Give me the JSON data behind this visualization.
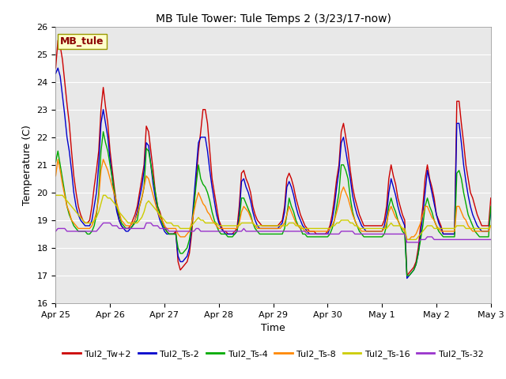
{
  "title": "MB Tule Tower: Tule Temps 2 (3/23/17-now)",
  "xlabel": "Time",
  "ylabel": "Temperature (C)",
  "ylim": [
    16.0,
    26.0
  ],
  "yticks": [
    16.0,
    17.0,
    18.0,
    19.0,
    20.0,
    21.0,
    22.0,
    23.0,
    24.0,
    25.0,
    26.0
  ],
  "bg_color": "#e8e8e8",
  "fig_color": "#ffffff",
  "grid_color": "#ffffff",
  "legend_label": "MB_tule",
  "series_colors": {
    "Tul2_Tw+2": "#cc0000",
    "Tul2_Ts-2": "#0000cc",
    "Tul2_Ts-4": "#00aa00",
    "Tul2_Ts-8": "#ff8800",
    "Tul2_Ts-16": "#cccc00",
    "Tul2_Ts-32": "#9933cc"
  },
  "n_points": 193,
  "Tul2_Tw+2": [
    24.5,
    25.5,
    25.3,
    24.8,
    24.0,
    23.2,
    22.5,
    21.5,
    20.6,
    20.0,
    19.5,
    19.2,
    19.0,
    18.9,
    18.9,
    19.0,
    19.5,
    20.2,
    20.8,
    21.5,
    23.0,
    23.8,
    23.1,
    22.5,
    21.5,
    20.8,
    20.1,
    19.5,
    19.0,
    18.8,
    18.7,
    18.7,
    18.7,
    18.8,
    19.0,
    19.2,
    19.5,
    20.0,
    20.5,
    21.0,
    22.4,
    22.2,
    21.5,
    20.8,
    20.0,
    19.5,
    19.3,
    19.0,
    18.8,
    18.6,
    18.5,
    18.5,
    18.5,
    18.6,
    17.5,
    17.2,
    17.3,
    17.4,
    17.5,
    17.8,
    18.5,
    19.5,
    20.5,
    21.5,
    22.2,
    23.0,
    23.0,
    22.5,
    21.5,
    20.5,
    20.0,
    19.5,
    19.0,
    18.8,
    18.6,
    18.6,
    18.5,
    18.5,
    18.5,
    18.6,
    18.7,
    19.5,
    20.7,
    20.8,
    20.5,
    20.3,
    20.0,
    19.5,
    19.2,
    19.0,
    18.9,
    18.8,
    18.8,
    18.8,
    18.8,
    18.8,
    18.8,
    18.8,
    18.8,
    18.9,
    19.0,
    19.5,
    20.5,
    20.7,
    20.5,
    20.2,
    19.8,
    19.5,
    19.2,
    19.0,
    18.8,
    18.7,
    18.6,
    18.6,
    18.6,
    18.5,
    18.5,
    18.5,
    18.5,
    18.5,
    18.6,
    18.8,
    19.2,
    19.8,
    20.5,
    21.0,
    22.2,
    22.5,
    22.0,
    21.5,
    20.8,
    20.2,
    19.8,
    19.5,
    19.2,
    19.0,
    18.8,
    18.8,
    18.8,
    18.8,
    18.8,
    18.8,
    18.8,
    18.8,
    18.8,
    19.0,
    19.5,
    20.5,
    21.0,
    20.6,
    20.3,
    19.8,
    19.5,
    19.2,
    19.0,
    17.0,
    17.1,
    17.2,
    17.3,
    17.5,
    18.0,
    18.8,
    19.5,
    20.5,
    21.0,
    20.5,
    20.2,
    19.8,
    19.2,
    19.0,
    18.8,
    18.5,
    18.5,
    18.5,
    18.5,
    18.5,
    18.5,
    23.3,
    23.3,
    22.5,
    21.8,
    21.0,
    20.5,
    20.0,
    19.8,
    19.5,
    19.2,
    19.0,
    18.8,
    18.8,
    18.8,
    18.8,
    19.8
  ],
  "Tul2_Ts-2": [
    24.3,
    24.5,
    24.2,
    23.5,
    22.8,
    22.0,
    21.5,
    20.8,
    20.0,
    19.5,
    19.2,
    19.0,
    18.9,
    18.8,
    18.8,
    18.8,
    19.0,
    19.5,
    20.0,
    21.0,
    22.5,
    23.0,
    22.5,
    22.0,
    21.2,
    20.5,
    19.8,
    19.3,
    19.0,
    18.8,
    18.7,
    18.6,
    18.6,
    18.7,
    18.8,
    19.0,
    19.3,
    19.8,
    20.2,
    20.8,
    21.8,
    21.7,
    21.0,
    20.3,
    19.8,
    19.3,
    19.0,
    18.8,
    18.6,
    18.5,
    18.5,
    18.5,
    18.5,
    18.5,
    17.7,
    17.5,
    17.5,
    17.6,
    17.7,
    18.0,
    18.8,
    19.8,
    20.8,
    21.8,
    22.0,
    22.0,
    22.0,
    21.5,
    20.8,
    20.2,
    19.7,
    19.2,
    18.9,
    18.7,
    18.6,
    18.5,
    18.5,
    18.5,
    18.5,
    18.5,
    18.6,
    19.2,
    20.4,
    20.5,
    20.2,
    20.0,
    19.7,
    19.3,
    19.0,
    18.8,
    18.7,
    18.7,
    18.7,
    18.7,
    18.7,
    18.7,
    18.7,
    18.7,
    18.7,
    18.8,
    18.9,
    19.3,
    20.2,
    20.4,
    20.2,
    19.9,
    19.5,
    19.2,
    19.0,
    18.8,
    18.7,
    18.6,
    18.5,
    18.5,
    18.5,
    18.5,
    18.5,
    18.5,
    18.5,
    18.5,
    18.5,
    18.7,
    19.0,
    19.5,
    20.2,
    20.8,
    21.8,
    22.0,
    21.5,
    21.0,
    20.5,
    19.9,
    19.5,
    19.2,
    19.0,
    18.8,
    18.7,
    18.6,
    18.6,
    18.6,
    18.6,
    18.6,
    18.6,
    18.6,
    18.6,
    18.8,
    19.2,
    20.0,
    20.5,
    20.2,
    19.9,
    19.5,
    19.2,
    19.0,
    18.8,
    16.9,
    17.0,
    17.1,
    17.2,
    17.4,
    17.8,
    18.5,
    19.2,
    20.0,
    20.8,
    20.4,
    20.0,
    19.6,
    19.2,
    18.9,
    18.7,
    18.5,
    18.5,
    18.5,
    18.5,
    18.5,
    18.5,
    22.5,
    22.5,
    21.8,
    21.0,
    20.4,
    19.9,
    19.5,
    19.2,
    19.0,
    18.8,
    18.7,
    18.6,
    18.6,
    18.6,
    18.6,
    19.3
  ],
  "Tul2_Ts-4": [
    21.1,
    21.5,
    21.0,
    20.5,
    20.0,
    19.5,
    19.2,
    19.0,
    18.8,
    18.7,
    18.6,
    18.6,
    18.6,
    18.6,
    18.5,
    18.5,
    18.6,
    18.8,
    19.2,
    20.0,
    21.5,
    22.2,
    21.8,
    21.5,
    21.0,
    20.5,
    20.0,
    19.5,
    19.2,
    18.9,
    18.8,
    18.7,
    18.7,
    18.7,
    18.8,
    18.9,
    19.0,
    19.5,
    19.8,
    20.2,
    21.6,
    21.5,
    21.0,
    20.5,
    20.0,
    19.5,
    19.2,
    18.9,
    18.7,
    18.6,
    18.5,
    18.5,
    18.5,
    18.5,
    18.0,
    17.8,
    17.8,
    17.9,
    18.0,
    18.3,
    18.8,
    19.5,
    20.3,
    21.0,
    20.5,
    20.3,
    20.2,
    20.0,
    19.7,
    19.3,
    19.0,
    18.8,
    18.6,
    18.5,
    18.5,
    18.5,
    18.4,
    18.4,
    18.4,
    18.5,
    18.6,
    19.0,
    19.8,
    19.8,
    19.6,
    19.4,
    19.2,
    18.9,
    18.7,
    18.6,
    18.5,
    18.5,
    18.5,
    18.5,
    18.5,
    18.5,
    18.5,
    18.5,
    18.5,
    18.5,
    18.5,
    18.7,
    19.2,
    19.8,
    19.5,
    19.3,
    19.0,
    18.8,
    18.7,
    18.5,
    18.5,
    18.4,
    18.4,
    18.4,
    18.4,
    18.4,
    18.4,
    18.4,
    18.4,
    18.4,
    18.4,
    18.5,
    18.7,
    19.0,
    19.5,
    20.0,
    21.0,
    21.0,
    20.8,
    20.5,
    19.8,
    19.3,
    19.0,
    18.8,
    18.6,
    18.5,
    18.4,
    18.4,
    18.4,
    18.4,
    18.4,
    18.4,
    18.4,
    18.4,
    18.4,
    18.5,
    18.8,
    19.5,
    19.8,
    19.5,
    19.3,
    19.0,
    18.8,
    18.6,
    18.5,
    17.0,
    17.0,
    17.1,
    17.2,
    17.4,
    17.8,
    18.3,
    18.8,
    19.5,
    19.8,
    19.5,
    19.3,
    19.0,
    18.8,
    18.6,
    18.5,
    18.4,
    18.4,
    18.4,
    18.4,
    18.4,
    18.4,
    20.7,
    20.8,
    20.5,
    20.0,
    19.6,
    19.2,
    19.0,
    18.8,
    18.6,
    18.5,
    18.4,
    18.4,
    18.4,
    18.4,
    18.4,
    19.5
  ],
  "Tul2_Ts-8": [
    20.6,
    21.2,
    20.8,
    20.3,
    19.9,
    19.5,
    19.3,
    19.0,
    18.9,
    18.8,
    18.7,
    18.7,
    18.7,
    18.7,
    18.7,
    18.7,
    18.8,
    19.0,
    19.3,
    19.8,
    20.8,
    21.2,
    21.0,
    20.8,
    20.5,
    20.2,
    19.9,
    19.6,
    19.3,
    19.0,
    18.9,
    18.8,
    18.8,
    18.8,
    18.9,
    19.0,
    19.2,
    19.5,
    19.8,
    20.2,
    20.6,
    20.5,
    20.2,
    19.9,
    19.6,
    19.3,
    19.1,
    19.0,
    18.8,
    18.7,
    18.7,
    18.7,
    18.7,
    18.7,
    18.5,
    18.4,
    18.4,
    18.4,
    18.5,
    18.6,
    18.9,
    19.3,
    19.7,
    20.0,
    19.8,
    19.6,
    19.5,
    19.3,
    19.2,
    19.0,
    18.9,
    18.8,
    18.7,
    18.7,
    18.7,
    18.7,
    18.7,
    18.7,
    18.7,
    18.7,
    18.7,
    18.9,
    19.3,
    19.5,
    19.4,
    19.3,
    19.1,
    18.9,
    18.8,
    18.7,
    18.7,
    18.7,
    18.7,
    18.7,
    18.7,
    18.7,
    18.7,
    18.7,
    18.7,
    18.7,
    18.8,
    18.9,
    19.2,
    19.5,
    19.3,
    19.1,
    18.9,
    18.8,
    18.7,
    18.7,
    18.6,
    18.6,
    18.6,
    18.6,
    18.6,
    18.6,
    18.6,
    18.6,
    18.6,
    18.6,
    18.6,
    18.7,
    18.8,
    19.0,
    19.3,
    19.6,
    20.0,
    20.2,
    20.0,
    19.8,
    19.5,
    19.2,
    19.0,
    18.8,
    18.7,
    18.6,
    18.6,
    18.6,
    18.6,
    18.6,
    18.6,
    18.6,
    18.6,
    18.6,
    18.6,
    18.7,
    18.9,
    19.3,
    19.5,
    19.3,
    19.1,
    19.0,
    18.8,
    18.7,
    18.6,
    18.3,
    18.3,
    18.4,
    18.4,
    18.5,
    18.7,
    18.9,
    19.2,
    19.5,
    19.5,
    19.3,
    19.1,
    19.0,
    18.8,
    18.7,
    18.6,
    18.6,
    18.6,
    18.6,
    18.6,
    18.6,
    18.6,
    19.5,
    19.5,
    19.3,
    19.1,
    19.0,
    18.8,
    18.7,
    18.6,
    18.6,
    18.6,
    18.6,
    18.6,
    18.6,
    18.6,
    18.6,
    18.8
  ],
  "Tul2_Ts-16": [
    19.9,
    19.9,
    19.9,
    19.9,
    19.8,
    19.7,
    19.6,
    19.5,
    19.4,
    19.3,
    19.2,
    19.1,
    19.0,
    18.9,
    18.9,
    18.9,
    18.9,
    19.0,
    19.1,
    19.3,
    19.6,
    19.9,
    19.9,
    19.8,
    19.8,
    19.7,
    19.6,
    19.5,
    19.3,
    19.2,
    19.1,
    19.0,
    18.9,
    18.9,
    18.9,
    18.9,
    18.9,
    19.0,
    19.1,
    19.3,
    19.6,
    19.7,
    19.6,
    19.5,
    19.4,
    19.3,
    19.2,
    19.1,
    19.0,
    18.9,
    18.9,
    18.9,
    18.8,
    18.8,
    18.8,
    18.7,
    18.7,
    18.7,
    18.7,
    18.7,
    18.8,
    18.9,
    19.0,
    19.1,
    19.0,
    19.0,
    18.9,
    18.9,
    18.9,
    18.9,
    18.9,
    18.9,
    18.8,
    18.8,
    18.8,
    18.8,
    18.8,
    18.8,
    18.8,
    18.8,
    18.8,
    18.8,
    18.9,
    18.9,
    18.9,
    18.9,
    18.9,
    18.9,
    18.8,
    18.8,
    18.8,
    18.8,
    18.8,
    18.8,
    18.8,
    18.8,
    18.8,
    18.8,
    18.8,
    18.8,
    18.8,
    18.8,
    18.8,
    18.9,
    18.9,
    18.9,
    18.8,
    18.8,
    18.8,
    18.7,
    18.7,
    18.7,
    18.7,
    18.7,
    18.7,
    18.7,
    18.7,
    18.7,
    18.7,
    18.7,
    18.7,
    18.7,
    18.8,
    18.8,
    18.9,
    18.9,
    19.0,
    19.0,
    19.0,
    19.0,
    18.9,
    18.9,
    18.8,
    18.8,
    18.7,
    18.7,
    18.7,
    18.7,
    18.7,
    18.7,
    18.7,
    18.7,
    18.7,
    18.7,
    18.7,
    18.7,
    18.7,
    18.8,
    18.9,
    18.8,
    18.8,
    18.8,
    18.8,
    18.7,
    18.7,
    18.3,
    18.3,
    18.3,
    18.3,
    18.3,
    18.4,
    18.5,
    18.6,
    18.7,
    18.8,
    18.8,
    18.8,
    18.7,
    18.7,
    18.7,
    18.7,
    18.7,
    18.7,
    18.7,
    18.7,
    18.7,
    18.7,
    18.8,
    18.8,
    18.8,
    18.8,
    18.7,
    18.7,
    18.7,
    18.7,
    18.7,
    18.7,
    18.7,
    18.7,
    18.7,
    18.7,
    18.7,
    18.8
  ],
  "Tul2_Ts-32": [
    18.6,
    18.7,
    18.7,
    18.7,
    18.7,
    18.6,
    18.6,
    18.6,
    18.6,
    18.6,
    18.6,
    18.6,
    18.6,
    18.6,
    18.6,
    18.6,
    18.6,
    18.6,
    18.6,
    18.7,
    18.8,
    18.9,
    18.9,
    18.9,
    18.9,
    18.8,
    18.8,
    18.8,
    18.7,
    18.7,
    18.7,
    18.7,
    18.7,
    18.7,
    18.7,
    18.7,
    18.7,
    18.7,
    18.7,
    18.7,
    18.9,
    18.9,
    18.9,
    18.8,
    18.8,
    18.8,
    18.7,
    18.7,
    18.7,
    18.7,
    18.6,
    18.6,
    18.6,
    18.6,
    18.6,
    18.6,
    18.6,
    18.6,
    18.6,
    18.6,
    18.6,
    18.6,
    18.7,
    18.7,
    18.6,
    18.6,
    18.6,
    18.6,
    18.6,
    18.6,
    18.6,
    18.6,
    18.6,
    18.6,
    18.6,
    18.6,
    18.6,
    18.6,
    18.6,
    18.6,
    18.6,
    18.6,
    18.6,
    18.7,
    18.6,
    18.6,
    18.6,
    18.6,
    18.6,
    18.6,
    18.6,
    18.6,
    18.6,
    18.6,
    18.6,
    18.6,
    18.6,
    18.6,
    18.6,
    18.6,
    18.6,
    18.6,
    18.6,
    18.6,
    18.6,
    18.6,
    18.6,
    18.6,
    18.6,
    18.6,
    18.6,
    18.5,
    18.5,
    18.5,
    18.5,
    18.5,
    18.5,
    18.5,
    18.5,
    18.5,
    18.5,
    18.5,
    18.5,
    18.5,
    18.5,
    18.5,
    18.6,
    18.6,
    18.6,
    18.6,
    18.6,
    18.6,
    18.5,
    18.5,
    18.5,
    18.5,
    18.5,
    18.5,
    18.5,
    18.5,
    18.5,
    18.5,
    18.5,
    18.5,
    18.5,
    18.5,
    18.5,
    18.5,
    18.5,
    18.5,
    18.5,
    18.5,
    18.5,
    18.5,
    18.5,
    18.2,
    18.2,
    18.2,
    18.2,
    18.2,
    18.2,
    18.3,
    18.3,
    18.3,
    18.4,
    18.4,
    18.4,
    18.3,
    18.3,
    18.3,
    18.3,
    18.3,
    18.3,
    18.3,
    18.3,
    18.3,
    18.3,
    18.3,
    18.3,
    18.3,
    18.3,
    18.3,
    18.3,
    18.3,
    18.3,
    18.3,
    18.3,
    18.3,
    18.3,
    18.3,
    18.3,
    18.3,
    18.3
  ]
}
